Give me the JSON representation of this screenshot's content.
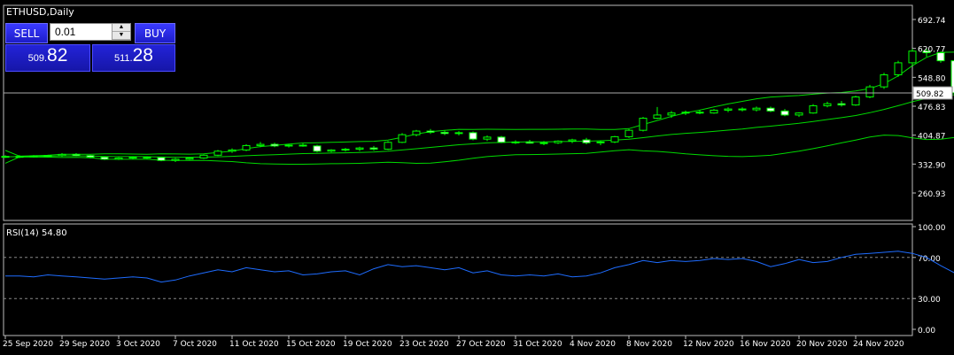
{
  "chart_title": "ETHUSD,Daily",
  "trade_panel": {
    "sell_label": "SELL",
    "buy_label": "BUY",
    "lot_value": "0.01",
    "sell_price_small": "509.",
    "sell_price_big": "82",
    "buy_price_small": "511.",
    "buy_price_big": "28"
  },
  "colors": {
    "background": "#000000",
    "candle_outline": "#00ff00",
    "bollinger": "#00ff00",
    "rsi_line": "#1e6cff",
    "grid_text": "#ffffff"
  },
  "chart_data": [
    {
      "type": "candlestick",
      "title": "ETHUSD,Daily",
      "ylim": [
        260.93,
        692.74
      ],
      "y_ticks": [
        "692.74",
        "620.77",
        "548.80",
        "476.83",
        "404.87",
        "332.90",
        "260.93"
      ],
      "current_price_label": "509.82",
      "current_price": 509.82,
      "x_tick_labels": [
        "25 Sep 2020",
        "29 Sep 2020",
        "3 Oct 2020",
        "7 Oct 2020",
        "11 Oct 2020",
        "15 Oct 2020",
        "19 Oct 2020",
        "23 Oct 2020",
        "27 Oct 2020",
        "31 Oct 2020",
        "4 Nov 2020",
        "8 Nov 2020",
        "12 Nov 2020",
        "16 Nov 2020",
        "20 Nov 2020",
        "24 Nov 2020"
      ],
      "candles": [
        [
          352,
          355,
          348,
          351
        ],
        [
          351,
          355,
          348,
          352
        ],
        [
          352,
          355,
          349,
          353
        ],
        [
          353,
          356,
          350,
          354
        ],
        [
          354,
          360,
          351,
          357
        ],
        [
          357,
          360,
          352,
          354
        ],
        [
          354,
          356,
          347,
          350
        ],
        [
          350,
          352,
          343,
          345
        ],
        [
          345,
          350,
          343,
          348
        ],
        [
          348,
          352,
          345,
          350
        ],
        [
          350,
          352,
          346,
          349
        ],
        [
          349,
          351,
          340,
          342
        ],
        [
          342,
          348,
          338,
          345
        ],
        [
          345,
          350,
          343,
          348
        ],
        [
          348,
          357,
          346,
          355
        ],
        [
          355,
          368,
          353,
          365
        ],
        [
          365,
          372,
          361,
          368
        ],
        [
          368,
          382,
          365,
          379
        ],
        [
          379,
          388,
          375,
          382
        ],
        [
          382,
          386,
          375,
          378
        ],
        [
          378,
          383,
          374,
          380
        ],
        [
          380,
          384,
          376,
          378
        ],
        [
          378,
          381,
          362,
          365
        ],
        [
          365,
          370,
          362,
          368
        ],
        [
          368,
          373,
          364,
          370
        ],
        [
          370,
          376,
          365,
          373
        ],
        [
          373,
          378,
          366,
          370
        ],
        [
          370,
          390,
          368,
          387
        ],
        [
          387,
          410,
          385,
          406
        ],
        [
          406,
          418,
          402,
          415
        ],
        [
          415,
          420,
          408,
          412
        ],
        [
          412,
          416,
          405,
          409
        ],
        [
          409,
          415,
          404,
          411
        ],
        [
          411,
          414,
          392,
          395
        ],
        [
          395,
          404,
          390,
          400
        ],
        [
          400,
          403,
          385,
          387
        ],
        [
          387,
          392,
          383,
          388
        ],
        [
          388,
          393,
          384,
          385
        ],
        [
          385,
          390,
          380,
          386
        ],
        [
          386,
          392,
          383,
          390
        ],
        [
          390,
          396,
          385,
          393
        ],
        [
          393,
          398,
          382,
          386
        ],
        [
          386,
          392,
          380,
          388
        ],
        [
          388,
          403,
          385,
          401
        ],
        [
          401,
          420,
          398,
          417
        ],
        [
          417,
          450,
          414,
          447
        ],
        [
          447,
          475,
          445,
          455
        ],
        [
          455,
          465,
          448,
          460
        ],
        [
          460,
          466,
          455,
          462
        ],
        [
          462,
          468,
          457,
          460
        ],
        [
          460,
          470,
          458,
          467
        ],
        [
          467,
          474,
          462,
          470
        ],
        [
          470,
          474,
          464,
          468
        ],
        [
          468,
          476,
          464,
          472
        ],
        [
          472,
          476,
          462,
          465
        ],
        [
          465,
          470,
          452,
          455
        ],
        [
          455,
          462,
          450,
          460
        ],
        [
          460,
          482,
          458,
          478
        ],
        [
          478,
          488,
          474,
          483
        ],
        [
          483,
          490,
          476,
          480
        ],
        [
          480,
          503,
          478,
          500
        ],
        [
          500,
          530,
          497,
          525
        ],
        [
          525,
          560,
          520,
          555
        ],
        [
          555,
          590,
          550,
          585
        ],
        [
          585,
          620,
          580,
          614
        ],
        [
          614,
          620,
          600,
          610
        ],
        [
          610,
          613,
          585,
          590
        ],
        [
          590,
          592,
          478,
          510
        ]
      ]
    },
    {
      "type": "line",
      "title": "RSI(14) 54.80",
      "ylim": [
        0,
        100
      ],
      "y_ticks": [
        "100.00",
        "70.00",
        "30.00",
        "0.00"
      ],
      "levels": [
        70,
        30
      ],
      "series": [
        {
          "values": [
            52,
            52,
            51,
            53,
            52,
            51,
            50,
            49,
            50,
            51,
            50,
            46,
            48,
            52,
            55,
            58,
            56,
            60,
            58,
            56,
            57,
            53,
            54,
            56,
            57,
            53,
            59,
            63,
            61,
            62,
            60,
            58,
            60,
            55,
            57,
            53,
            52,
            53,
            52,
            54,
            51,
            52,
            55,
            60,
            63,
            67,
            65,
            67,
            66,
            67,
            69,
            68,
            69,
            66,
            61,
            64,
            68,
            65,
            66,
            70,
            73,
            74,
            75,
            76,
            74,
            70,
            62,
            54.8
          ]
        }
      ]
    }
  ]
}
